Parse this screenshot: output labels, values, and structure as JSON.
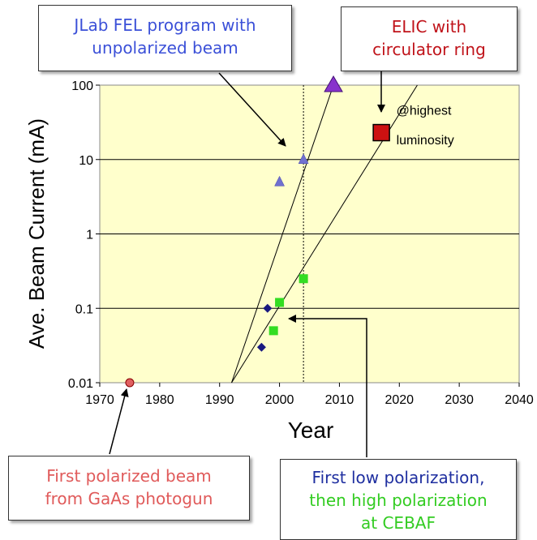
{
  "chart_data": {
    "type": "scatter",
    "xlabel": "Year",
    "ylabel": "Ave. Beam Current (mA)",
    "xlim": [
      1970,
      2040
    ],
    "ylim": [
      0.01,
      100
    ],
    "y_scale": "log",
    "x_ticks": [
      "1970",
      "1980",
      "1990",
      "2000",
      "2010",
      "2020",
      "2030",
      "2040"
    ],
    "y_ticks": [
      "0.01",
      "0.1",
      "1",
      "10",
      "100"
    ],
    "grid": "horizontal",
    "vertical_marker_x": 2004,
    "series": [
      {
        "marker": "circle",
        "color": "#e06060",
        "points": [
          {
            "x": 1975,
            "y": 0.01
          }
        ]
      },
      {
        "marker": "diamond",
        "color": "#1a1a80",
        "points": [
          {
            "x": 1997,
            "y": 0.03
          },
          {
            "x": 1998,
            "y": 0.1
          }
        ]
      },
      {
        "marker": "square",
        "color": "#33dd22",
        "points": [
          {
            "x": 1999,
            "y": 0.05
          },
          {
            "x": 2000,
            "y": 0.12
          },
          {
            "x": 2004,
            "y": 0.25
          }
        ]
      },
      {
        "marker": "triangle",
        "color": "#7070d0",
        "points": [
          {
            "x": 2000,
            "y": 5
          },
          {
            "x": 2004,
            "y": 10
          }
        ]
      },
      {
        "marker": "triangle-large",
        "color": "#8833cc",
        "points": [
          {
            "x": 2009,
            "y": 100
          }
        ]
      },
      {
        "marker": "square-large",
        "color": "#cc1111",
        "points": [
          {
            "x": 2017,
            "y": 23
          }
        ]
      }
    ],
    "trend_lines": [
      {
        "from": {
          "x": 1992,
          "y": 0.01
        },
        "to": {
          "x": 2009,
          "y": 100
        }
      },
      {
        "from": {
          "x": 1992,
          "y": 0.01
        },
        "to": {
          "x": 2023,
          "y": 100
        }
      }
    ],
    "annotations": [
      {
        "text": "@highest",
        "x": 2019.5,
        "y": 40
      },
      {
        "text": "luminosity",
        "x": 2019.5,
        "y": 16
      }
    ]
  },
  "callouts": {
    "jlab": [
      "JLab FEL program with",
      "unpolarized beam"
    ],
    "elic": [
      "ELIC with",
      "circulator ring"
    ],
    "first_polarized": [
      "First polarized beam",
      "from GaAs photogun"
    ],
    "low_polarization": [
      "First low polarization,",
      "then high polarization",
      "at CEBAF"
    ]
  }
}
